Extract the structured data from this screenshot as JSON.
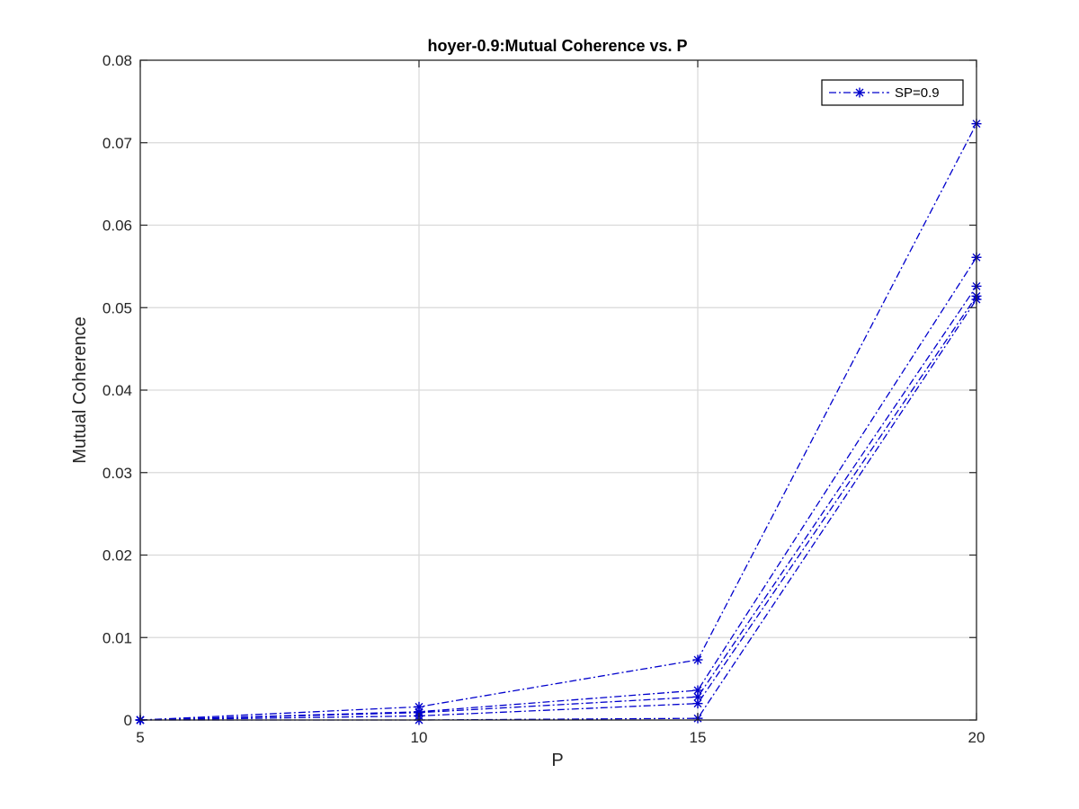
{
  "chart_data": {
    "type": "line",
    "title": "hoyer-0.9:Mutual Coherence vs. P",
    "xlabel": "P",
    "ylabel": "Mutual Coherence",
    "xlim": [
      5,
      20
    ],
    "ylim": [
      0,
      0.08
    ],
    "xticks": [
      5,
      10,
      15,
      20
    ],
    "yticks": [
      0,
      0.01,
      0.02,
      0.03,
      0.04,
      0.05,
      0.06,
      0.07,
      0.08
    ],
    "xtick_labels": [
      "5",
      "10",
      "15",
      "20"
    ],
    "ytick_labels": [
      "0",
      "0.01",
      "0.02",
      "0.03",
      "0.04",
      "0.05",
      "0.06",
      "0.07",
      "0.08"
    ],
    "grid": true,
    "legend": {
      "entries": [
        "SP=0.9"
      ],
      "placement": "top-right"
    },
    "line_color": "#0000CC",
    "x": [
      5,
      10,
      15,
      20
    ],
    "series": [
      {
        "values": [
          0,
          0.0016,
          0.0073,
          0.0723
        ]
      },
      {
        "values": [
          0,
          0.001,
          0.0036,
          0.0561
        ]
      },
      {
        "values": [
          0,
          0.0009,
          0.0028,
          0.0526
        ]
      },
      {
        "values": [
          0,
          0.0005,
          0.002,
          0.0514
        ]
      },
      {
        "values": [
          0,
          0.0,
          0.0002,
          0.051
        ]
      }
    ]
  }
}
